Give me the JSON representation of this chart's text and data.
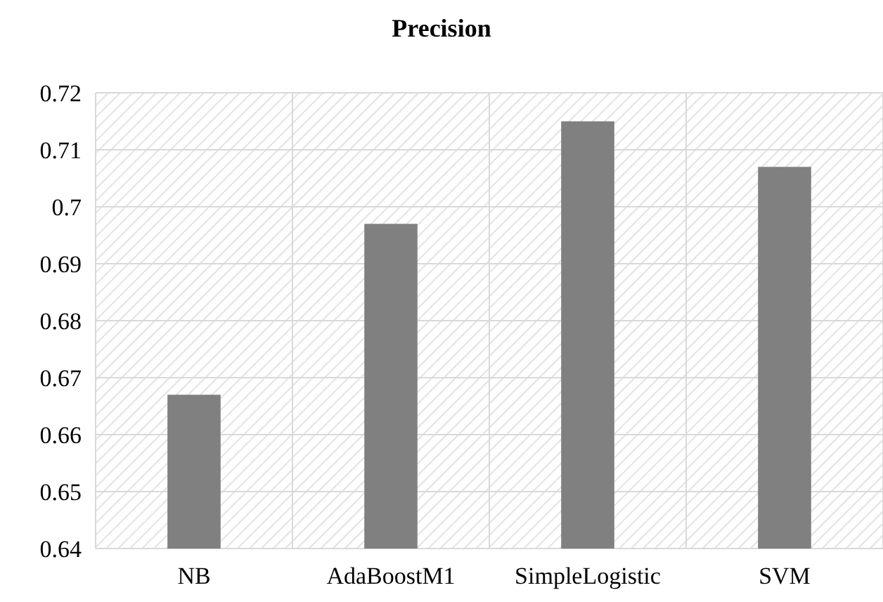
{
  "chart_data": {
    "type": "bar",
    "title": "Precision",
    "categories": [
      "NB",
      "AdaBoostM1",
      "SimpleLogistic",
      "SVM"
    ],
    "values": [
      0.667,
      0.697,
      0.715,
      0.707
    ],
    "color": "#808080",
    "ylim": [
      0.64,
      0.72
    ],
    "yticks": [
      0.64,
      0.65,
      0.66,
      0.67,
      0.68,
      0.69,
      0.7,
      0.71,
      0.72
    ],
    "grid": true
  }
}
